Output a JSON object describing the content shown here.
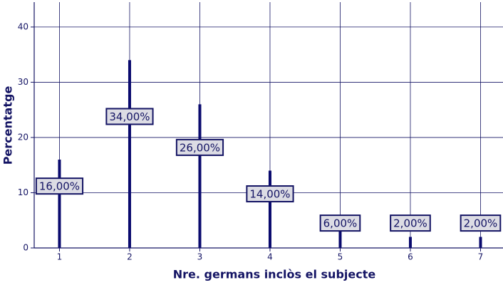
{
  "chart_data": {
    "type": "spike",
    "x_label": "Nre. germans inclòs el subjecte",
    "y_label": "Percentatge",
    "x": [
      1,
      2,
      3,
      4,
      5,
      6,
      7
    ],
    "values": [
      16,
      34,
      26,
      14,
      6,
      2,
      2
    ],
    "value_labels": [
      "16,00%",
      "34,00%",
      "26,00%",
      "14,00%",
      "6,00%",
      "2,00%",
      "2,00%"
    ],
    "color": "#0a0a6e",
    "xlim": [
      0.64,
      7.32
    ],
    "xticks": [
      1,
      2,
      3,
      4,
      5,
      6,
      7
    ],
    "ylim": [
      0,
      44.5
    ],
    "yticks": [
      0,
      10,
      20,
      30,
      40
    ],
    "grid": true
  }
}
